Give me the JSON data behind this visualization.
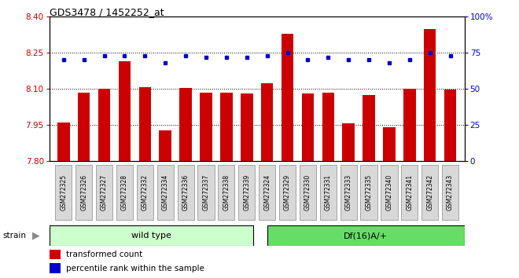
{
  "title": "GDS3478 / 1452252_at",
  "categories": [
    "GSM272325",
    "GSM272326",
    "GSM272327",
    "GSM272328",
    "GSM272332",
    "GSM272334",
    "GSM272336",
    "GSM272337",
    "GSM272338",
    "GSM272339",
    "GSM272324",
    "GSM272329",
    "GSM272330",
    "GSM272331",
    "GSM272333",
    "GSM272335",
    "GSM272340",
    "GSM272341",
    "GSM272342",
    "GSM272343"
  ],
  "red_values": [
    7.962,
    8.085,
    8.102,
    8.215,
    8.108,
    7.928,
    8.103,
    8.083,
    8.085,
    8.08,
    8.125,
    8.328,
    8.082,
    8.084,
    7.956,
    8.074,
    7.94,
    8.1,
    8.35,
    8.098
  ],
  "blue_values": [
    70,
    70,
    73,
    73,
    73,
    68,
    73,
    72,
    72,
    72,
    73,
    75,
    70,
    72,
    70,
    70,
    68,
    70,
    75,
    73
  ],
  "ylim_left": [
    7.8,
    8.4
  ],
  "ylim_right": [
    0,
    100
  ],
  "yticks_left": [
    7.8,
    7.95,
    8.1,
    8.25,
    8.4
  ],
  "yticks_right": [
    0,
    25,
    50,
    75,
    100
  ],
  "grid_values": [
    7.95,
    8.1,
    8.25
  ],
  "wild_type_count": 10,
  "group_labels": [
    "wild type",
    "Df(16)A/+"
  ],
  "group_colors_light": [
    "#ccffcc",
    "#66dd66"
  ],
  "bar_color": "#CC0000",
  "dot_color": "#0000CC",
  "strain_label": "strain",
  "legend_items": [
    "transformed count",
    "percentile rank within the sample"
  ]
}
